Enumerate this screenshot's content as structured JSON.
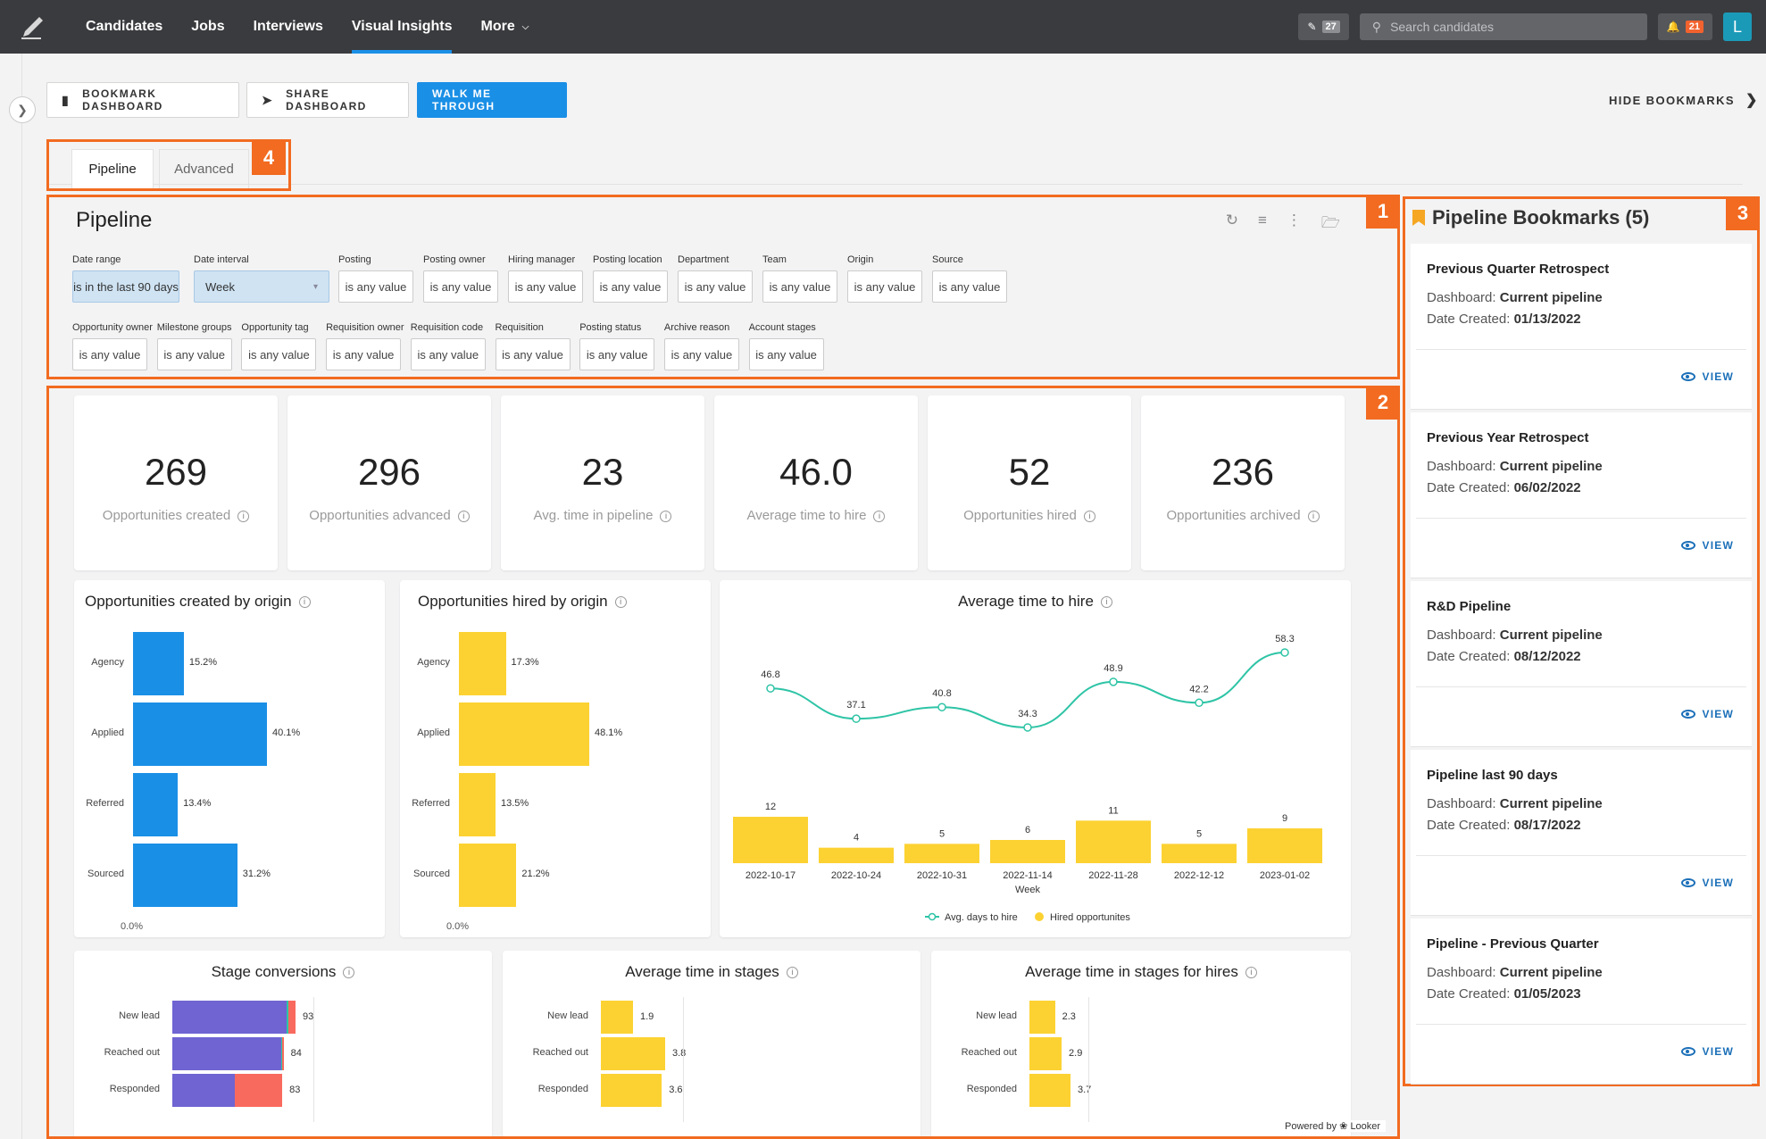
{
  "nav": {
    "items": [
      "Candidates",
      "Jobs",
      "Interviews",
      "Visual Insights",
      "More"
    ],
    "active": "Visual Insights"
  },
  "topright": {
    "edit_count": "27",
    "search_placeholder": "Search candidates",
    "notif_count": "21",
    "avatar": "L"
  },
  "actions": {
    "bookmark": "BOOKMARK DASHBOARD",
    "share": "SHARE DASHBOARD",
    "walk": "WALK ME THROUGH",
    "hide": "HIDE BOOKMARKS"
  },
  "tabs": [
    "Pipeline",
    "Advanced"
  ],
  "badges": [
    "1",
    "2",
    "3",
    "4"
  ],
  "filters": {
    "title": "Pipeline",
    "row1": [
      {
        "label": "Date range",
        "value": "is in the last 90 days"
      },
      {
        "label": "Date interval",
        "value": "Week"
      },
      {
        "label": "Posting",
        "value": "is any value"
      },
      {
        "label": "Posting owner",
        "value": "is any value"
      },
      {
        "label": "Hiring manager",
        "value": "is any value"
      },
      {
        "label": "Posting location",
        "value": "is any value"
      },
      {
        "label": "Department",
        "value": "is any value"
      },
      {
        "label": "Team",
        "value": "is any value"
      },
      {
        "label": "Origin",
        "value": "is any value"
      },
      {
        "label": "Source",
        "value": "is any value"
      }
    ],
    "row2": [
      {
        "label": "Opportunity owner",
        "value": "is any value"
      },
      {
        "label": "Milestone groups",
        "value": "is any value"
      },
      {
        "label": "Opportunity tag",
        "value": "is any value"
      },
      {
        "label": "Requisition owner",
        "value": "is any value"
      },
      {
        "label": "Requisition code",
        "value": "is any value"
      },
      {
        "label": "Requisition",
        "value": "is any value"
      },
      {
        "label": "Posting status",
        "value": "is any value"
      },
      {
        "label": "Archive reason",
        "value": "is any value"
      },
      {
        "label": "Account stages",
        "value": "is any value"
      }
    ]
  },
  "kpis": [
    {
      "value": "269",
      "label": "Opportunities created"
    },
    {
      "value": "296",
      "label": "Opportunities advanced"
    },
    {
      "value": "23",
      "label": "Avg. time in pipeline"
    },
    {
      "value": "46.0",
      "label": "Average time to hire"
    },
    {
      "value": "52",
      "label": "Opportunities hired"
    },
    {
      "value": "236",
      "label": "Opportunities archived"
    }
  ],
  "chart_data": [
    {
      "type": "bar",
      "title": "Opportunities created by origin",
      "categories": [
        "Agency",
        "Applied",
        "Referred",
        "Sourced"
      ],
      "values": [
        15.2,
        40.1,
        13.4,
        31.2
      ],
      "labels": [
        "15.2%",
        "40.1%",
        "13.4%",
        "31.2%"
      ],
      "axis_start": "0.0%",
      "color": "#1a8fe6"
    },
    {
      "type": "bar",
      "title": "Opportunities hired by origin",
      "categories": [
        "Agency",
        "Applied",
        "Referred",
        "Sourced"
      ],
      "values": [
        17.3,
        48.1,
        13.5,
        21.2
      ],
      "labels": [
        "17.3%",
        "48.1%",
        "13.5%",
        "21.2%"
      ],
      "axis_start": "0.0%",
      "color": "#fcd232"
    },
    {
      "type": "line",
      "title": "Average time to hire",
      "x": [
        "2022-10-17",
        "2022-10-24",
        "2022-10-31",
        "2022-11-14",
        "2022-11-28",
        "2022-12-12",
        "2023-01-02"
      ],
      "xlabel": "Week",
      "series": [
        {
          "name": "Avg. days to hire",
          "values": [
            46.8,
            37.1,
            40.8,
            34.3,
            48.9,
            42.2,
            58.3
          ],
          "labels": [
            "46.8",
            "37.1",
            "40.8",
            "34.3",
            "48.9",
            "42.2",
            "58.3"
          ],
          "color": "#2ec4a6"
        },
        {
          "name": "Hired opportunites",
          "values": [
            12,
            4,
            5,
            6,
            11,
            5,
            9
          ],
          "labels": [
            "12",
            "4",
            "5",
            "6",
            "11",
            "5",
            "9"
          ],
          "color": "#fcd232"
        }
      ]
    },
    {
      "type": "bar",
      "title": "Stage conversions",
      "categories": [
        "New lead",
        "Reached out",
        "Responded"
      ],
      "values": [
        93,
        84,
        83
      ],
      "labels": [
        "93",
        "84",
        "83"
      ],
      "segments": [
        [
          0.93,
          0.01,
          0.06
        ],
        [
          0.98,
          0.01,
          0.01
        ],
        [
          0.57,
          0.0,
          0.43
        ]
      ],
      "colors": [
        "#6f64d1",
        "#2ec4a6",
        "#f86a5e"
      ]
    },
    {
      "type": "bar",
      "title": "Average time in stages",
      "categories": [
        "New lead",
        "Reached out",
        "Responded"
      ],
      "values": [
        1.9,
        3.8,
        3.6
      ],
      "labels": [
        "1.9",
        "3.8",
        "3.6"
      ],
      "color": "#fcd232"
    },
    {
      "type": "bar",
      "title": "Average time in stages for hires",
      "categories": [
        "New lead",
        "Reached out",
        "Responded"
      ],
      "values": [
        2.3,
        2.9,
        3.7
      ],
      "labels": [
        "2.3",
        "2.9",
        "3.7"
      ],
      "color": "#fcd232"
    }
  ],
  "powered": "Powered by",
  "powered_brand": "Looker",
  "bookmarks": {
    "title": "Pipeline Bookmarks (5)",
    "dash_label": "Dashboard:",
    "date_label": "Date Created:",
    "view": "VIEW",
    "items": [
      {
        "name": "Previous Quarter Retrospect",
        "dashboard": "Current pipeline",
        "date": "01/13/2022"
      },
      {
        "name": "Previous Year Retrospect",
        "dashboard": "Current pipeline",
        "date": "06/02/2022"
      },
      {
        "name": "R&D Pipeline",
        "dashboard": "Current pipeline",
        "date": "08/12/2022"
      },
      {
        "name": "Pipeline last 90 days",
        "dashboard": "Current pipeline",
        "date": "08/17/2022"
      },
      {
        "name": "Pipeline - Previous Quarter",
        "dashboard": "Current pipeline",
        "date": "01/05/2023"
      }
    ]
  }
}
